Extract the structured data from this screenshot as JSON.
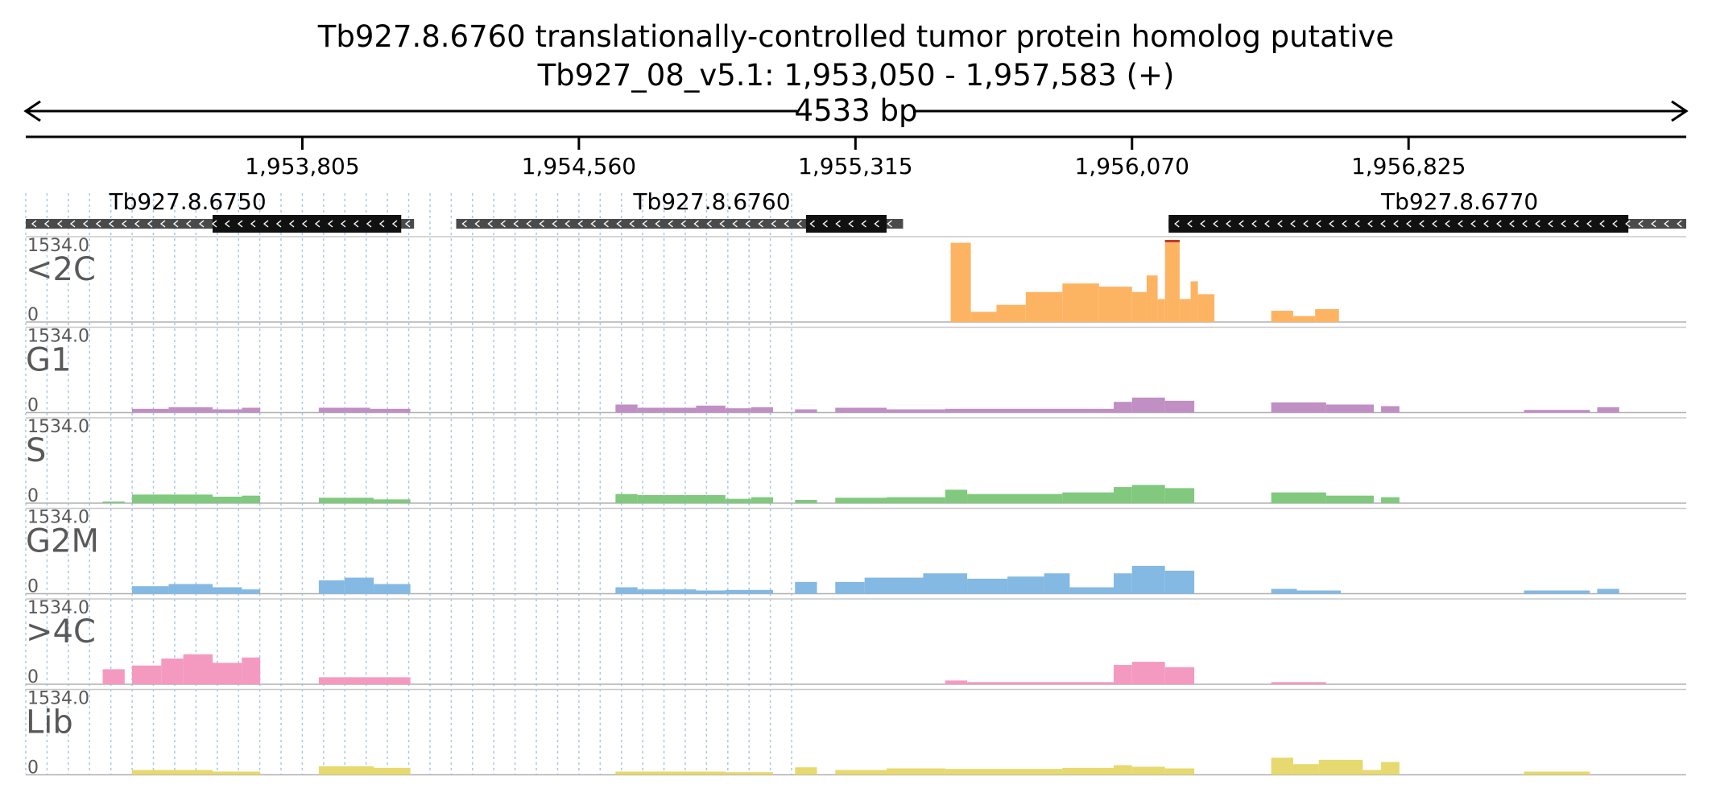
{
  "header": {
    "title": "Tb927.8.6760  translationally-controlled tumor protein homolog  putative",
    "location": "Tb927_08_v5.1: 1,953,050 - 1,957,583 (+)",
    "span_label": "4533 bp"
  },
  "ruler": {
    "start": 1953050,
    "end": 1957583,
    "ticks": [
      {
        "pos": 1953805,
        "label": "1,953,805"
      },
      {
        "pos": 1954560,
        "label": "1,954,560"
      },
      {
        "pos": 1955315,
        "label": "1,955,315"
      },
      {
        "pos": 1956070,
        "label": "1,956,070"
      },
      {
        "pos": 1956825,
        "label": "1,956,825"
      }
    ]
  },
  "genes": [
    {
      "name": "Tb927.8.6750",
      "strand": "-",
      "start": 1953050,
      "end": 1954110,
      "cds_start": 1953560,
      "cds_end": 1954075
    },
    {
      "name": "Tb927.8.6760",
      "strand": "-",
      "start": 1954225,
      "end": 1955445,
      "cds_start": 1955180,
      "cds_end": 1955400
    },
    {
      "name": "Tb927.8.6770",
      "strand": "-",
      "start": 1956170,
      "end": 1957583,
      "cds_start": 1956170,
      "cds_end": 1957425
    }
  ],
  "chart_data": {
    "type": "bar",
    "x_unit": "bp",
    "xlim": [
      1953050,
      1957583
    ],
    "ylim": [
      0,
      1534.0
    ],
    "tracks": [
      {
        "label": "<2C",
        "color": "#fdb462",
        "max_label": "1534.0",
        "min_label": "0",
        "segments": [
          {
            "start": 1955575,
            "end": 1955630,
            "value": 1480
          },
          {
            "start": 1955630,
            "end": 1955700,
            "value": 190
          },
          {
            "start": 1955700,
            "end": 1955780,
            "value": 320
          },
          {
            "start": 1955780,
            "end": 1955880,
            "value": 560
          },
          {
            "start": 1955880,
            "end": 1955980,
            "value": 720
          },
          {
            "start": 1955980,
            "end": 1956070,
            "value": 660
          },
          {
            "start": 1956070,
            "end": 1956110,
            "value": 560
          },
          {
            "start": 1956110,
            "end": 1956140,
            "value": 870
          },
          {
            "start": 1956140,
            "end": 1956160,
            "value": 430
          },
          {
            "start": 1956160,
            "end": 1956200,
            "value": 1534
          },
          {
            "start": 1956200,
            "end": 1956230,
            "value": 430
          },
          {
            "start": 1956230,
            "end": 1956250,
            "value": 760
          },
          {
            "start": 1956250,
            "end": 1956295,
            "value": 520
          },
          {
            "start": 1956450,
            "end": 1956510,
            "value": 210
          },
          {
            "start": 1956510,
            "end": 1956570,
            "value": 110
          },
          {
            "start": 1956570,
            "end": 1956635,
            "value": 240
          }
        ]
      },
      {
        "label": "G1",
        "color": "#c08fc4",
        "max_label": "1534.0",
        "min_label": "0",
        "segments": [
          {
            "start": 1953340,
            "end": 1953440,
            "value": 70
          },
          {
            "start": 1953440,
            "end": 1953560,
            "value": 100
          },
          {
            "start": 1953560,
            "end": 1953640,
            "value": 60
          },
          {
            "start": 1953640,
            "end": 1953690,
            "value": 90
          },
          {
            "start": 1953850,
            "end": 1953990,
            "value": 90
          },
          {
            "start": 1953990,
            "end": 1954100,
            "value": 70
          },
          {
            "start": 1954660,
            "end": 1954720,
            "value": 150
          },
          {
            "start": 1954720,
            "end": 1954880,
            "value": 90
          },
          {
            "start": 1954880,
            "end": 1954960,
            "value": 130
          },
          {
            "start": 1954960,
            "end": 1955030,
            "value": 80
          },
          {
            "start": 1955030,
            "end": 1955090,
            "value": 100
          },
          {
            "start": 1955150,
            "end": 1955210,
            "value": 60
          },
          {
            "start": 1955260,
            "end": 1955400,
            "value": 90
          },
          {
            "start": 1955400,
            "end": 1955560,
            "value": 60
          },
          {
            "start": 1955560,
            "end": 1956020,
            "value": 70
          },
          {
            "start": 1956020,
            "end": 1956070,
            "value": 200
          },
          {
            "start": 1956070,
            "end": 1956160,
            "value": 280
          },
          {
            "start": 1956160,
            "end": 1956240,
            "value": 220
          },
          {
            "start": 1956450,
            "end": 1956600,
            "value": 190
          },
          {
            "start": 1956600,
            "end": 1956730,
            "value": 150
          },
          {
            "start": 1956750,
            "end": 1956800,
            "value": 120
          },
          {
            "start": 1957140,
            "end": 1957320,
            "value": 50
          },
          {
            "start": 1957340,
            "end": 1957400,
            "value": 100
          }
        ]
      },
      {
        "label": "S",
        "color": "#80c97e",
        "max_label": "1534.0",
        "min_label": "0",
        "segments": [
          {
            "start": 1953260,
            "end": 1953320,
            "value": 30
          },
          {
            "start": 1953340,
            "end": 1953560,
            "value": 160
          },
          {
            "start": 1953560,
            "end": 1953640,
            "value": 120
          },
          {
            "start": 1953640,
            "end": 1953690,
            "value": 140
          },
          {
            "start": 1953850,
            "end": 1954000,
            "value": 100
          },
          {
            "start": 1954000,
            "end": 1954100,
            "value": 70
          },
          {
            "start": 1954660,
            "end": 1954720,
            "value": 170
          },
          {
            "start": 1954720,
            "end": 1954960,
            "value": 150
          },
          {
            "start": 1954960,
            "end": 1955030,
            "value": 80
          },
          {
            "start": 1955030,
            "end": 1955090,
            "value": 110
          },
          {
            "start": 1955150,
            "end": 1955210,
            "value": 60
          },
          {
            "start": 1955260,
            "end": 1955400,
            "value": 100
          },
          {
            "start": 1955400,
            "end": 1955560,
            "value": 110
          },
          {
            "start": 1955560,
            "end": 1955620,
            "value": 250
          },
          {
            "start": 1955620,
            "end": 1955880,
            "value": 170
          },
          {
            "start": 1955880,
            "end": 1956020,
            "value": 200
          },
          {
            "start": 1956020,
            "end": 1956070,
            "value": 300
          },
          {
            "start": 1956070,
            "end": 1956160,
            "value": 340
          },
          {
            "start": 1956160,
            "end": 1956240,
            "value": 280
          },
          {
            "start": 1956450,
            "end": 1956600,
            "value": 200
          },
          {
            "start": 1956600,
            "end": 1956730,
            "value": 140
          },
          {
            "start": 1956750,
            "end": 1956800,
            "value": 110
          }
        ]
      },
      {
        "label": "G2M",
        "color": "#84b9e3",
        "max_label": "1534.0",
        "min_label": "0",
        "segments": [
          {
            "start": 1953340,
            "end": 1953440,
            "value": 140
          },
          {
            "start": 1953440,
            "end": 1953560,
            "value": 180
          },
          {
            "start": 1953560,
            "end": 1953640,
            "value": 120
          },
          {
            "start": 1953640,
            "end": 1953690,
            "value": 80
          },
          {
            "start": 1953850,
            "end": 1953920,
            "value": 250
          },
          {
            "start": 1953920,
            "end": 1954000,
            "value": 300
          },
          {
            "start": 1954000,
            "end": 1954100,
            "value": 180
          },
          {
            "start": 1954660,
            "end": 1954720,
            "value": 120
          },
          {
            "start": 1954720,
            "end": 1954880,
            "value": 80
          },
          {
            "start": 1954880,
            "end": 1954960,
            "value": 60
          },
          {
            "start": 1954960,
            "end": 1955090,
            "value": 70
          },
          {
            "start": 1955150,
            "end": 1955210,
            "value": 220
          },
          {
            "start": 1955260,
            "end": 1955340,
            "value": 220
          },
          {
            "start": 1955340,
            "end": 1955500,
            "value": 300
          },
          {
            "start": 1955500,
            "end": 1955620,
            "value": 380
          },
          {
            "start": 1955620,
            "end": 1955730,
            "value": 280
          },
          {
            "start": 1955730,
            "end": 1955830,
            "value": 320
          },
          {
            "start": 1955830,
            "end": 1955900,
            "value": 380
          },
          {
            "start": 1955900,
            "end": 1956020,
            "value": 120
          },
          {
            "start": 1956020,
            "end": 1956070,
            "value": 380
          },
          {
            "start": 1956070,
            "end": 1956160,
            "value": 520
          },
          {
            "start": 1956160,
            "end": 1956240,
            "value": 430
          },
          {
            "start": 1956450,
            "end": 1956520,
            "value": 90
          },
          {
            "start": 1956520,
            "end": 1956640,
            "value": 60
          },
          {
            "start": 1957140,
            "end": 1957320,
            "value": 60
          },
          {
            "start": 1957340,
            "end": 1957400,
            "value": 90
          }
        ]
      },
      {
        "label": ">4C",
        "color": "#f49ac1",
        "max_label": "1534.0",
        "min_label": "0",
        "segments": [
          {
            "start": 1953260,
            "end": 1953320,
            "value": 280
          },
          {
            "start": 1953340,
            "end": 1953420,
            "value": 350
          },
          {
            "start": 1953420,
            "end": 1953480,
            "value": 480
          },
          {
            "start": 1953480,
            "end": 1953560,
            "value": 560
          },
          {
            "start": 1953560,
            "end": 1953640,
            "value": 400
          },
          {
            "start": 1953640,
            "end": 1953690,
            "value": 500
          },
          {
            "start": 1953850,
            "end": 1954100,
            "value": 130
          },
          {
            "start": 1955560,
            "end": 1955620,
            "value": 70
          },
          {
            "start": 1955620,
            "end": 1956020,
            "value": 40
          },
          {
            "start": 1956020,
            "end": 1956070,
            "value": 360
          },
          {
            "start": 1956070,
            "end": 1956160,
            "value": 420
          },
          {
            "start": 1956160,
            "end": 1956240,
            "value": 320
          },
          {
            "start": 1956450,
            "end": 1956600,
            "value": 40
          }
        ]
      },
      {
        "label": "Lib",
        "color": "#e6d96f",
        "max_label": "1534.0",
        "min_label": "0",
        "segments": [
          {
            "start": 1953340,
            "end": 1953560,
            "value": 90
          },
          {
            "start": 1953560,
            "end": 1953690,
            "value": 60
          },
          {
            "start": 1953850,
            "end": 1954000,
            "value": 160
          },
          {
            "start": 1954000,
            "end": 1954100,
            "value": 130
          },
          {
            "start": 1954660,
            "end": 1954960,
            "value": 60
          },
          {
            "start": 1954960,
            "end": 1955090,
            "value": 50
          },
          {
            "start": 1955150,
            "end": 1955210,
            "value": 140
          },
          {
            "start": 1955260,
            "end": 1955400,
            "value": 90
          },
          {
            "start": 1955400,
            "end": 1955560,
            "value": 120
          },
          {
            "start": 1955560,
            "end": 1955880,
            "value": 110
          },
          {
            "start": 1955880,
            "end": 1956020,
            "value": 130
          },
          {
            "start": 1956020,
            "end": 1956070,
            "value": 180
          },
          {
            "start": 1956070,
            "end": 1956160,
            "value": 150
          },
          {
            "start": 1956160,
            "end": 1956240,
            "value": 120
          },
          {
            "start": 1956450,
            "end": 1956510,
            "value": 320
          },
          {
            "start": 1956510,
            "end": 1956580,
            "value": 200
          },
          {
            "start": 1956580,
            "end": 1956700,
            "value": 280
          },
          {
            "start": 1956700,
            "end": 1956750,
            "value": 90
          },
          {
            "start": 1956750,
            "end": 1956800,
            "value": 240
          },
          {
            "start": 1957140,
            "end": 1957320,
            "value": 60
          }
        ]
      }
    ]
  }
}
